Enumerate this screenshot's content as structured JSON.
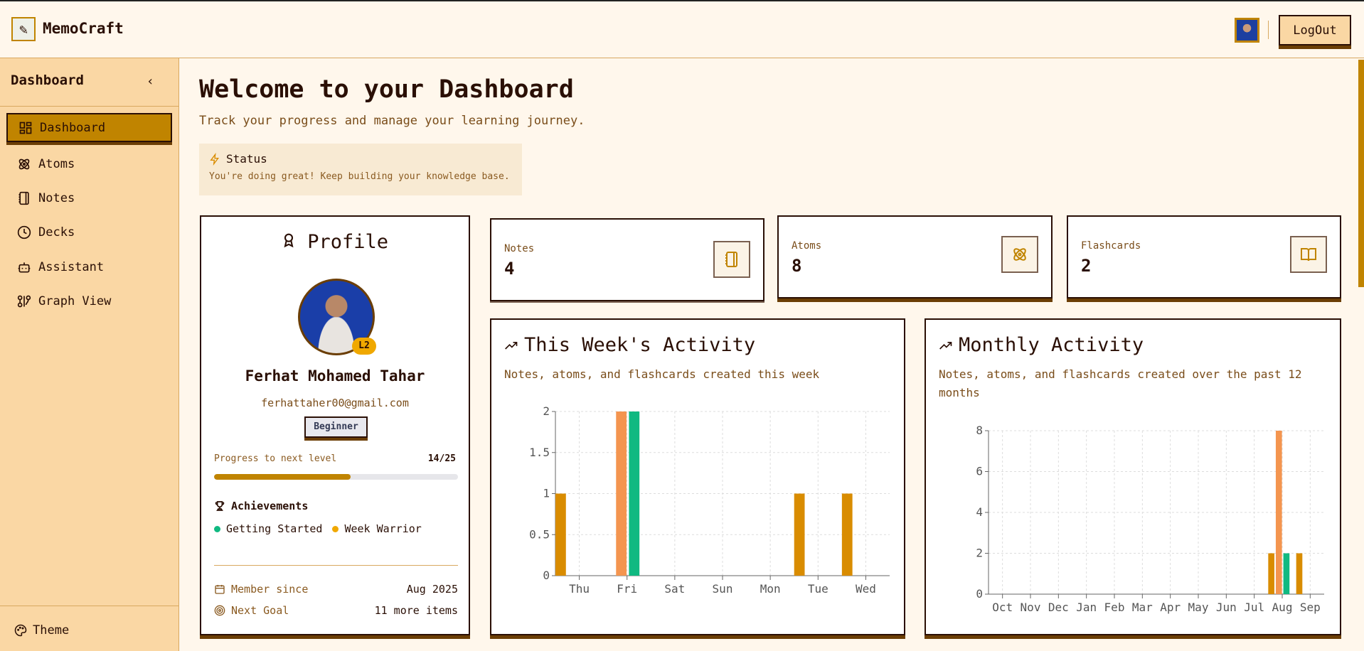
{
  "app": {
    "name": "MemoCraft",
    "logout_label": "LogOut"
  },
  "sidebar": {
    "title": "Dashboard",
    "items": [
      {
        "label": "Dashboard",
        "icon": "dashboard-icon",
        "active": true
      },
      {
        "label": "Atoms",
        "icon": "atom-icon"
      },
      {
        "label": "Notes",
        "icon": "notebook-icon"
      },
      {
        "label": "Decks",
        "icon": "clock-icon"
      },
      {
        "label": "Assistant",
        "icon": "bot-icon"
      },
      {
        "label": "Graph View",
        "icon": "graph-icon"
      }
    ],
    "theme_label": "Theme"
  },
  "main": {
    "title": "Welcome to your Dashboard",
    "subtitle": "Track your progress and manage your learning journey.",
    "status": {
      "title": "Status",
      "text": "You're doing great! Keep building your knowledge base."
    }
  },
  "profile": {
    "title": "Profile",
    "level": "L2",
    "name": "Ferhat Mohamed Tahar",
    "email": "ferhattaher00@gmail.com",
    "badge": "Beginner",
    "progress_label": "Progress to next level",
    "progress_value": "14/25",
    "progress_fraction": 0.56,
    "achievements_title": "Achievements",
    "achievements": [
      {
        "label": "Getting Started",
        "color": "#10b981"
      },
      {
        "label": "Week Warrior",
        "color": "#f0a800"
      }
    ],
    "member_since_label": "Member since",
    "member_since": "Aug 2025",
    "next_goal_label": "Next Goal",
    "next_goal": "11 more items"
  },
  "stats": [
    {
      "label": "Notes",
      "value": "4",
      "icon": "notebook-icon"
    },
    {
      "label": "Atoms",
      "value": "8",
      "icon": "atom-icon"
    },
    {
      "label": "Flashcards",
      "value": "2",
      "icon": "book-open-icon"
    }
  ],
  "colors": {
    "accent": "#c08400",
    "series": [
      "#d98c00",
      "#f4954f",
      "#10b981"
    ]
  },
  "chart_data": [
    {
      "type": "bar",
      "title": "This Week's Activity",
      "subtitle": "Notes, atoms, and flashcards created this week",
      "categories": [
        "Thu",
        "Fri",
        "Sat",
        "Sun",
        "Mon",
        "Tue",
        "Wed"
      ],
      "series": [
        {
          "values": [
            1,
            0,
            0,
            0,
            0,
            1,
            1
          ],
          "color": "#d98c00"
        },
        {
          "values": [
            0,
            2,
            0,
            0,
            0,
            0,
            0
          ],
          "color": "#f4954f"
        },
        {
          "values": [
            0,
            2,
            0,
            0,
            0,
            0,
            0
          ],
          "color": "#10b981"
        }
      ],
      "ylim": [
        0,
        2
      ],
      "yticks": [
        "0",
        "0.5",
        "1",
        "1.5",
        "2"
      ],
      "grid": true
    },
    {
      "type": "bar",
      "title": "Monthly Activity",
      "subtitle": "Notes, atoms, and flashcards created over the past 12 months",
      "categories": [
        "Oct",
        "Nov",
        "Dec",
        "Jan",
        "Feb",
        "Mar",
        "Apr",
        "May",
        "Jun",
        "Jul",
        "Aug",
        "Sep"
      ],
      "series": [
        {
          "values": [
            0,
            0,
            0,
            0,
            0,
            0,
            0,
            0,
            0,
            0,
            2,
            2
          ],
          "color": "#d98c00"
        },
        {
          "values": [
            0,
            0,
            0,
            0,
            0,
            0,
            0,
            0,
            0,
            0,
            8,
            0
          ],
          "color": "#f4954f"
        },
        {
          "values": [
            0,
            0,
            0,
            0,
            0,
            0,
            0,
            0,
            0,
            0,
            2,
            0
          ],
          "color": "#10b981"
        }
      ],
      "ylim": [
        0,
        8
      ],
      "yticks": [
        "0",
        "2",
        "4",
        "6",
        "8"
      ],
      "grid": true
    }
  ]
}
